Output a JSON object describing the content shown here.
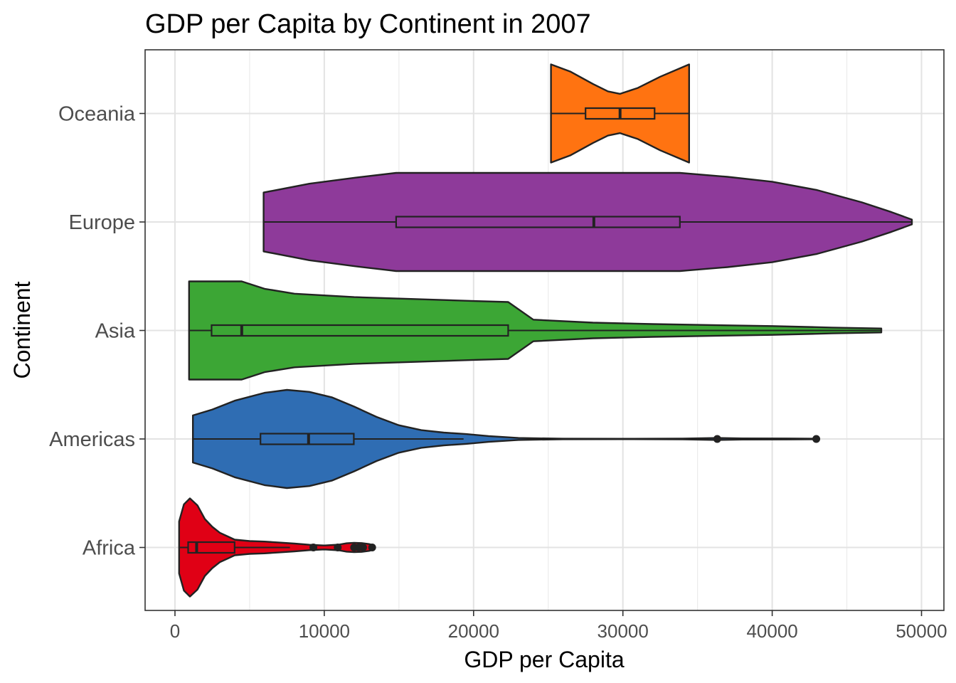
{
  "chart_data": {
    "type": "violin",
    "title": "GDP per Capita by Continent in 2007",
    "xlabel": "GDP per Capita",
    "ylabel": "Continent",
    "xlim": [
      -2000,
      51500
    ],
    "x_ticks": [
      0,
      10000,
      20000,
      30000,
      40000,
      50000
    ],
    "categories": [
      "Africa",
      "Americas",
      "Asia",
      "Europe",
      "Oceania"
    ],
    "grid": true,
    "orientation": "horizontal",
    "series": [
      {
        "name": "Africa",
        "color": "#e00015",
        "min": 277,
        "max": 13206,
        "box": {
          "q1": 882,
          "median": 1452,
          "q3": 3994,
          "whisker_low": 277,
          "whisker_high": 7700
        },
        "outliers": [
          9270,
          10900,
          12000,
          12300,
          12600,
          13206
        ],
        "density": [
          [
            277,
            0.53
          ],
          [
            600,
            0.88
          ],
          [
            1000,
            1.0
          ],
          [
            1500,
            0.86
          ],
          [
            2000,
            0.58
          ],
          [
            2500,
            0.42
          ],
          [
            3000,
            0.3
          ],
          [
            3500,
            0.23
          ],
          [
            4000,
            0.16
          ],
          [
            5000,
            0.13
          ],
          [
            6000,
            0.12
          ],
          [
            7000,
            0.1
          ],
          [
            8000,
            0.08
          ],
          [
            9000,
            0.055
          ],
          [
            10000,
            0.04
          ],
          [
            11000,
            0.06
          ],
          [
            11500,
            0.085
          ],
          [
            12000,
            0.095
          ],
          [
            12500,
            0.09
          ],
          [
            13000,
            0.07
          ],
          [
            13206,
            0.05
          ]
        ]
      },
      {
        "name": "Americas",
        "color": "#2f6db3",
        "min": 1202,
        "max": 42952,
        "box": {
          "q1": 5728,
          "median": 8948,
          "q3": 11978,
          "whisker_low": 1202,
          "whisker_high": 19329
        },
        "outliers": [
          36319,
          42952
        ],
        "density": [
          [
            1202,
            0.48
          ],
          [
            2500,
            0.6
          ],
          [
            4000,
            0.78
          ],
          [
            6000,
            0.94
          ],
          [
            7500,
            1.0
          ],
          [
            9000,
            0.96
          ],
          [
            10500,
            0.85
          ],
          [
            12000,
            0.66
          ],
          [
            13500,
            0.45
          ],
          [
            15000,
            0.28
          ],
          [
            16500,
            0.18
          ],
          [
            18000,
            0.13
          ],
          [
            19500,
            0.1
          ],
          [
            21000,
            0.06
          ],
          [
            23000,
            0.02
          ],
          [
            26000,
            0.006
          ],
          [
            30000,
            0.005
          ],
          [
            34000,
            0.008
          ],
          [
            36300,
            0.02
          ],
          [
            38000,
            0.012
          ],
          [
            41000,
            0.01
          ],
          [
            42952,
            0.006
          ]
        ]
      },
      {
        "name": "Asia",
        "color": "#3ca635",
        "min": 944,
        "max": 47307,
        "box": {
          "q1": 2452,
          "median": 4471,
          "q3": 22316,
          "whisker_low": 944,
          "whisker_high": 47307
        },
        "outliers": [],
        "density": [
          [
            944,
            1.0
          ],
          [
            2500,
            1.0
          ],
          [
            4471,
            1.0
          ],
          [
            6000,
            0.85
          ],
          [
            8000,
            0.75
          ],
          [
            12000,
            0.68
          ],
          [
            16000,
            0.64
          ],
          [
            20000,
            0.6
          ],
          [
            22316,
            0.58
          ],
          [
            24000,
            0.22
          ],
          [
            28000,
            0.16
          ],
          [
            32000,
            0.13
          ],
          [
            36000,
            0.11
          ],
          [
            40000,
            0.09
          ],
          [
            44000,
            0.06
          ],
          [
            47307,
            0.04
          ]
        ]
      },
      {
        "name": "Europe",
        "color": "#8e3a9a",
        "min": 5937,
        "max": 49357,
        "box": {
          "q1": 14812,
          "median": 28054,
          "q3": 33817,
          "whisker_low": 5937,
          "whisker_high": 49357
        },
        "outliers": [],
        "density": [
          [
            5937,
            0.6
          ],
          [
            9000,
            0.78
          ],
          [
            12000,
            0.9
          ],
          [
            14812,
            1.0
          ],
          [
            18000,
            1.0
          ],
          [
            22000,
            1.0
          ],
          [
            26000,
            1.0
          ],
          [
            28054,
            1.0
          ],
          [
            31000,
            1.0
          ],
          [
            33817,
            1.0
          ],
          [
            37000,
            0.92
          ],
          [
            40000,
            0.82
          ],
          [
            43000,
            0.65
          ],
          [
            46000,
            0.4
          ],
          [
            48000,
            0.2
          ],
          [
            49357,
            0.05
          ]
        ]
      },
      {
        "name": "Oceania",
        "color": "#ff7311",
        "min": 25185,
        "max": 34435,
        "box": {
          "q1": 27498,
          "median": 29810,
          "q3": 32123,
          "whisker_low": 25185,
          "whisker_high": 34435
        },
        "outliers": [],
        "density": [
          [
            25185,
            1.0
          ],
          [
            26500,
            0.85
          ],
          [
            28000,
            0.6
          ],
          [
            29000,
            0.45
          ],
          [
            29810,
            0.4
          ],
          [
            31000,
            0.52
          ],
          [
            32500,
            0.75
          ],
          [
            34435,
            1.0
          ]
        ]
      }
    ]
  }
}
